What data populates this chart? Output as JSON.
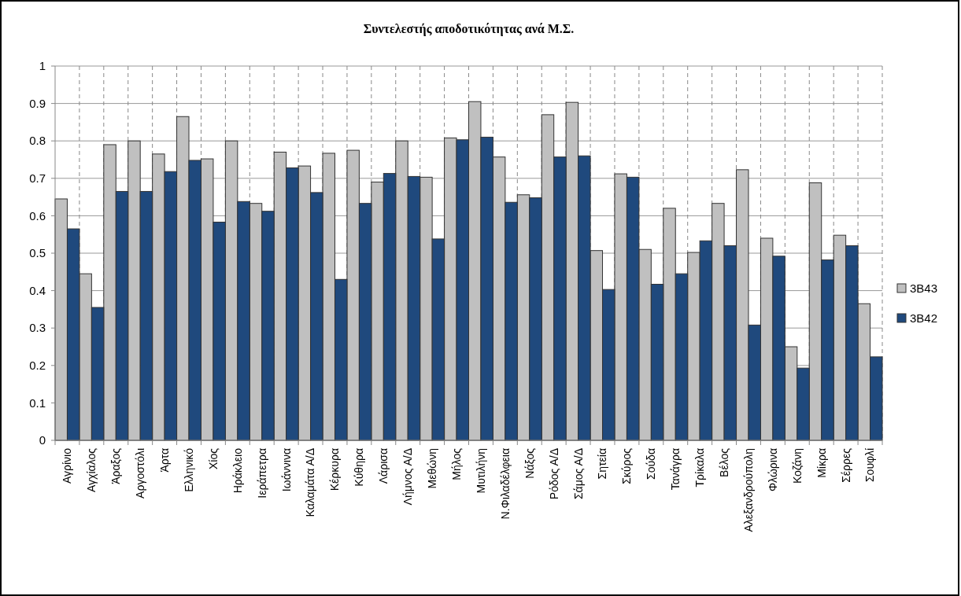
{
  "chart_data": {
    "type": "bar",
    "title": "Συντελεστής αποδοτικότητας  ανά Μ.Σ.",
    "categories": [
      "Αγρίνιο",
      "Αγχίαλος",
      "Άραξος",
      "Αργοστόλι",
      "Άρτα",
      "Ελληνικό",
      "Χίος",
      "Ηράκλειο",
      "Ιεράπετρα",
      "Ιωάννινα",
      "Καλαμάτα Α/Δ",
      "Κέρκυρα",
      "Κύθηρα",
      "Λάρισα",
      "Λήμνος Α/Δ",
      "Μεθώνη",
      "Μήλος",
      "Μυτιλήνη",
      "Ν.Φιλαδέλφεια",
      "Νάξος",
      "Ρόδος Α/Δ",
      "Σάμος Α/Δ",
      "Σητεία",
      "Σκύρος",
      "Σούδα",
      "Τανάγρα",
      "Τρίκαλα",
      "Βέλος",
      "Αλεξανδρούπολη",
      "Φλώρινα",
      "Κοζάνη",
      "Μίκρα",
      "Σέρρες",
      "Σουφλί"
    ],
    "series": [
      {
        "name": "3B43",
        "color": "#c0c0c0",
        "values": [
          0.645,
          0.445,
          0.79,
          0.8,
          0.765,
          0.865,
          0.752,
          0.8,
          0.633,
          0.77,
          0.733,
          0.767,
          0.775,
          0.69,
          0.8,
          0.703,
          0.808,
          0.905,
          0.757,
          0.656,
          0.87,
          0.903,
          0.507,
          0.712,
          0.51,
          0.62,
          0.502,
          0.633,
          0.723,
          0.54,
          0.25,
          0.688,
          0.548,
          0.365
        ]
      },
      {
        "name": "3B42",
        "color": "#1f497d",
        "values": [
          0.565,
          0.355,
          0.665,
          0.665,
          0.718,
          0.748,
          0.583,
          0.638,
          0.612,
          0.728,
          0.662,
          0.43,
          0.633,
          0.713,
          0.705,
          0.538,
          0.803,
          0.81,
          0.636,
          0.648,
          0.757,
          0.76,
          0.403,
          0.703,
          0.417,
          0.445,
          0.533,
          0.52,
          0.308,
          0.492,
          0.193,
          0.482,
          0.52,
          0.223
        ]
      }
    ],
    "ylim": [
      0,
      1
    ],
    "yticks": [
      0,
      0.1,
      0.2,
      0.3,
      0.4,
      0.5,
      0.6,
      0.7,
      0.8,
      0.9,
      1
    ],
    "grid": true,
    "legend": "right"
  }
}
